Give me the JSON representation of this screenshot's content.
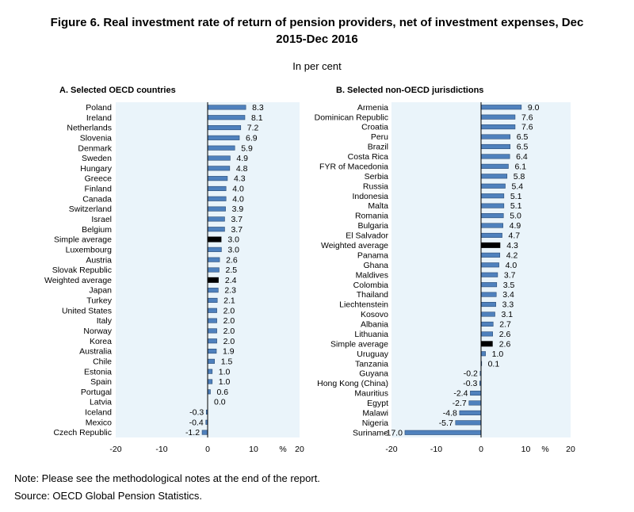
{
  "figure": {
    "title_line1": "Figure 6. Real investment rate of return of pension providers, net of investment expenses, Dec",
    "title_line2": "2015-Dec 2016",
    "subtitle": "In per cent"
  },
  "colors": {
    "bar": "#4f81bd",
    "bar_highlight": "#000000",
    "plot_bg": "#eaf4fa",
    "axis": "#000000"
  },
  "chart_data": [
    {
      "type": "bar",
      "orientation": "horizontal",
      "title": "A. Selected OECD countries",
      "categories": [
        "Poland",
        "Ireland",
        "Netherlands",
        "Slovenia",
        "Denmark",
        "Sweden",
        "Hungary",
        "Greece",
        "Finland",
        "Canada",
        "Switzerland",
        "Israel",
        "Belgium",
        "Simple average",
        "Luxembourg",
        "Austria",
        "Slovak Republic",
        "Weighted average",
        "Japan",
        "Turkey",
        "United States",
        "Italy",
        "Norway",
        "Korea",
        "Australia",
        "Chile",
        "Estonia",
        "Spain",
        "Portugal",
        "Latvia",
        "Iceland",
        "Mexico",
        "Czech Republic"
      ],
      "values": [
        8.3,
        8.1,
        7.2,
        6.9,
        5.9,
        4.9,
        4.8,
        4.3,
        4.0,
        4.0,
        3.9,
        3.7,
        3.7,
        3.0,
        3.0,
        2.6,
        2.5,
        2.4,
        2.3,
        2.1,
        2.0,
        2.0,
        2.0,
        2.0,
        1.9,
        1.5,
        1.0,
        1.0,
        0.6,
        0.0,
        -0.3,
        -0.4,
        -1.2
      ],
      "labels": [
        "8.3",
        "8.1",
        "7.2",
        "6.9",
        "5.9",
        "4.9",
        "4.8",
        "4.3",
        "4.0",
        "4.0",
        "3.9",
        "3.7",
        "3.7",
        "3.0",
        "3.0",
        "2.6",
        "2.5",
        "2.4",
        "2.3",
        "2.1",
        "2.0",
        "2.0",
        "2.0",
        "2.0",
        "1.9",
        "1.5",
        "1.0",
        "1.0",
        "0.6",
        "0.0",
        "-0.3",
        "-0.4",
        "-1.2"
      ],
      "highlight": [
        "Simple average",
        "Weighted average"
      ],
      "xlim": [
        -20,
        20
      ],
      "xticks": [
        "-20",
        "-10",
        "0",
        "10",
        "20"
      ],
      "unit_label": "%"
    },
    {
      "type": "bar",
      "orientation": "horizontal",
      "title": "B. Selected non-OECD jurisdictions",
      "categories": [
        "Armenia",
        "Dominican Republic",
        "Croatia",
        "Peru",
        "Brazil",
        "Costa Rica",
        "FYR of Macedonia",
        "Serbia",
        "Russia",
        "Indonesia",
        "Malta",
        "Romania",
        "Bulgaria",
        "El Salvador",
        "Weighted average",
        "Panama",
        "Ghana",
        "Maldives",
        "Colombia",
        "Thailand",
        "Liechtenstein",
        "Kosovo",
        "Albania",
        "Lithuania",
        "Simple average",
        "Uruguay",
        "Tanzania",
        "Guyana",
        "Hong Kong (China)",
        "Mauritius",
        "Egypt",
        "Malawi",
        "Nigeria",
        "Suriname"
      ],
      "values": [
        9.0,
        7.6,
        7.6,
        6.5,
        6.5,
        6.4,
        6.1,
        5.8,
        5.4,
        5.1,
        5.1,
        5.0,
        4.9,
        4.7,
        4.3,
        4.2,
        4.0,
        3.7,
        3.5,
        3.4,
        3.3,
        3.1,
        2.7,
        2.6,
        2.6,
        1.0,
        0.1,
        -0.2,
        -0.3,
        -2.4,
        -2.7,
        -4.8,
        -5.7,
        -17.0
      ],
      "labels": [
        "9.0",
        "7.6",
        "7.6",
        "6.5",
        "6.5",
        "6.4",
        "6.1",
        "5.8",
        "5.4",
        "5.1",
        "5.1",
        "5.0",
        "4.9",
        "4.7",
        "4.3",
        "4.2",
        "4.0",
        "3.7",
        "3.5",
        "3.4",
        "3.3",
        "3.1",
        "2.7",
        "2.6",
        "2.6",
        "1.0",
        "0.1",
        "-0.2",
        "-0.3",
        "-2.4",
        "-2.7",
        "-4.8",
        "-5.7",
        "-17.0"
      ],
      "highlight": [
        "Weighted average",
        "Simple average"
      ],
      "xlim": [
        -20,
        20
      ],
      "xticks": [
        "-20",
        "-10",
        "0",
        "10",
        "20"
      ],
      "unit_label": "%"
    }
  ],
  "footer": {
    "note": "Note: Please see the methodological notes at the end of the report.",
    "source": "Source: OECD Global Pension Statistics."
  }
}
